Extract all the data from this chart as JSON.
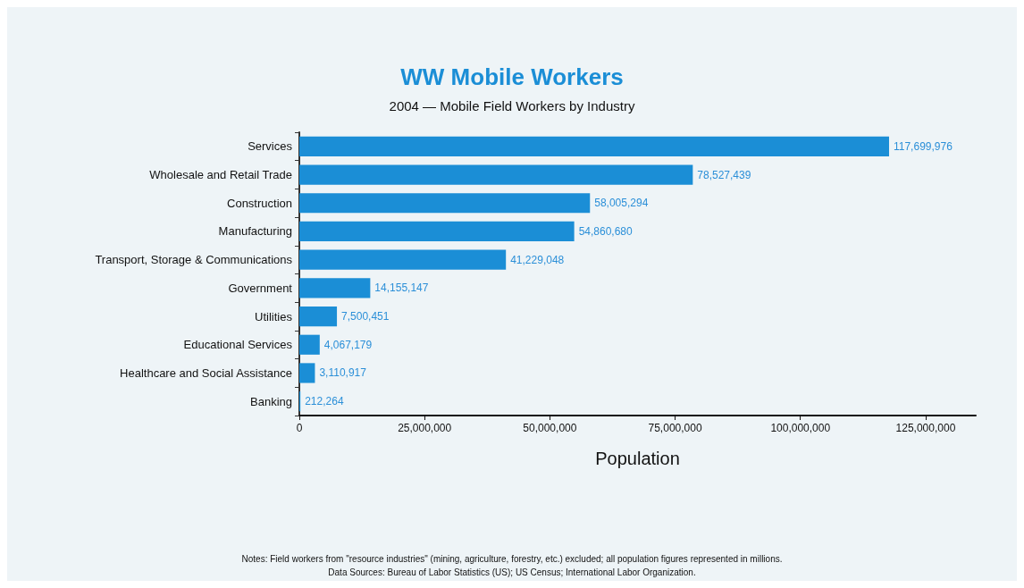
{
  "chart_data": {
    "type": "bar",
    "orientation": "horizontal",
    "title": "WW Mobile Workers",
    "subtitle": "2004 — Mobile Field Workers by Industry",
    "xlabel": "Population",
    "categories": [
      "Services",
      "Wholesale and Retail Trade",
      "Construction",
      "Manufacturing",
      "Transport, Storage & Communications",
      "Government",
      "Utilities",
      "Educational Services",
      "Healthcare and Social Assistance",
      "Banking"
    ],
    "values": [
      117699976,
      78527439,
      58005294,
      54860680,
      41229048,
      14155147,
      7500451,
      4067179,
      3110917,
      212264
    ],
    "color": "#1b8ed6",
    "value_labels": [
      "117,699,976",
      "78,527,439",
      "58,005,294",
      "54,860,680",
      "41,229,048",
      "14,155,147",
      "7,500,451",
      "4,067,179",
      "3,110,917",
      "212,264"
    ],
    "xlim": [
      0,
      135000000
    ],
    "xticks": [
      {
        "value": 0,
        "label": "0"
      },
      {
        "value": 25000000,
        "label": "25,000,000"
      },
      {
        "value": 50000000,
        "label": "50,000,000"
      },
      {
        "value": 75000000,
        "label": "75,000,000"
      },
      {
        "value": 100000000,
        "label": "100,000,000"
      },
      {
        "value": 125000000,
        "label": "125,000,000"
      }
    ],
    "grid": false,
    "annotations": [
      "Notes: Field workers from \"resource industries\" (mining, agriculture, forestry, etc.) excluded; all population figures represented in millions.",
      "Data Sources: Bureau of Labor Statistics (US); US Census; International Labor Organization."
    ]
  }
}
